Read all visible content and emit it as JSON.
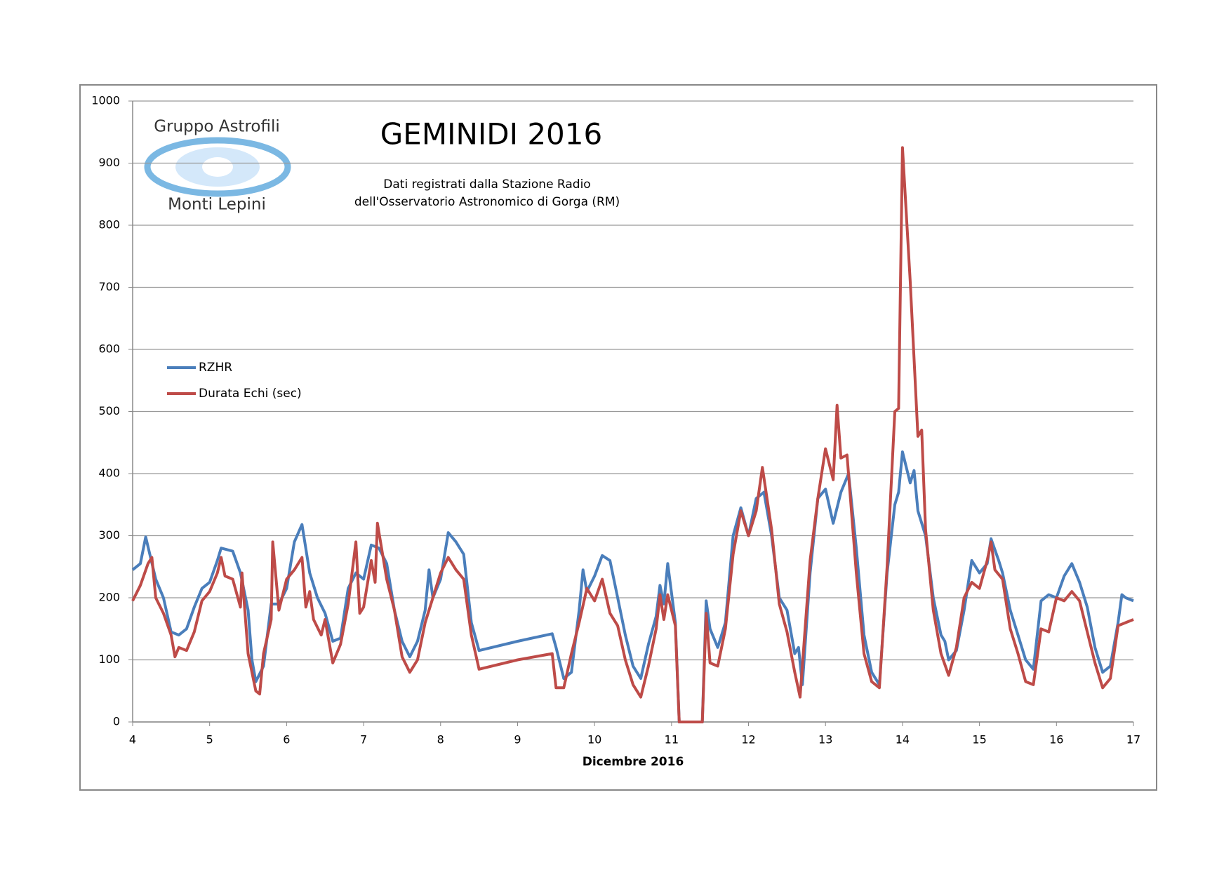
{
  "chart_data": {
    "type": "line",
    "title": "GEMINIDI 2016",
    "subtitle": [
      "Dati registrati dalla Stazione Radio",
      "dell'Osservatorio Astronomico di Gorga (RM)"
    ],
    "logo": [
      "Gruppo Astrofili",
      "Monti Lepini"
    ],
    "x_label": "Dicembre 2016",
    "xlim": [
      4,
      17
    ],
    "xticks": [
      4,
      5,
      6,
      7,
      8,
      9,
      10,
      11,
      12,
      13,
      14,
      15,
      16,
      17
    ],
    "ylim": [
      0,
      1000
    ],
    "yticks": [
      0,
      100,
      200,
      300,
      400,
      500,
      600,
      700,
      800,
      900,
      1000
    ],
    "grid": true,
    "legend": "left",
    "series": [
      {
        "name": "RZHR",
        "color": "#4a7ebb",
        "x": [
          4.0,
          4.1,
          4.17,
          4.3,
          4.4,
          4.5,
          4.6,
          4.7,
          4.8,
          4.9,
          5.0,
          5.1,
          5.15,
          5.3,
          5.4,
          5.5,
          5.55,
          5.6,
          5.7,
          5.8,
          5.9,
          6.0,
          6.1,
          6.2,
          6.3,
          6.4,
          6.5,
          6.6,
          6.7,
          6.8,
          6.9,
          7.0,
          7.1,
          7.2,
          7.3,
          7.4,
          7.5,
          7.6,
          7.7,
          7.8,
          7.85,
          7.9,
          8.0,
          8.1,
          8.2,
          8.3,
          8.4,
          8.5,
          9.0,
          9.45,
          9.5,
          9.6,
          9.7,
          9.8,
          9.85,
          9.9,
          10.0,
          10.1,
          10.2,
          10.3,
          10.4,
          10.5,
          10.6,
          10.7,
          10.8,
          10.85,
          10.9,
          10.95,
          11.05,
          11.1,
          11.4,
          11.45,
          11.5,
          11.6,
          11.7,
          11.8,
          11.9,
          12.0,
          12.1,
          12.2,
          12.3,
          12.4,
          12.5,
          12.6,
          12.65,
          12.7,
          12.8,
          12.9,
          13.0,
          13.1,
          13.2,
          13.3,
          13.4,
          13.5,
          13.6,
          13.7,
          13.8,
          13.9,
          13.95,
          14.0,
          14.1,
          14.15,
          14.2,
          14.3,
          14.4,
          14.5,
          14.55,
          14.6,
          14.7,
          14.8,
          14.9,
          15.0,
          15.1,
          15.15,
          15.25,
          15.3,
          15.4,
          15.5,
          15.6,
          15.7,
          15.8,
          15.9,
          16.0,
          16.1,
          16.2,
          16.3,
          16.4,
          16.5,
          16.6,
          16.7,
          16.8,
          16.85,
          16.9,
          17.0
        ],
        "values": [
          245,
          255,
          298,
          230,
          200,
          145,
          140,
          150,
          185,
          215,
          225,
          260,
          280,
          275,
          240,
          180,
          100,
          65,
          90,
          190,
          190,
          215,
          290,
          318,
          240,
          200,
          175,
          130,
          135,
          215,
          240,
          230,
          285,
          280,
          255,
          180,
          130,
          105,
          130,
          180,
          245,
          200,
          230,
          305,
          290,
          270,
          160,
          115,
          130,
          142,
          120,
          70,
          80,
          180,
          245,
          210,
          235,
          268,
          260,
          200,
          140,
          90,
          70,
          125,
          170,
          220,
          190,
          255,
          160,
          0,
          0,
          195,
          150,
          120,
          160,
          300,
          345,
          300,
          360,
          370,
          300,
          200,
          180,
          110,
          120,
          60,
          240,
          360,
          375,
          320,
          370,
          400,
          280,
          140,
          80,
          60,
          240,
          350,
          370,
          435,
          385,
          405,
          340,
          300,
          200,
          140,
          130,
          100,
          115,
          180,
          260,
          240,
          255,
          295,
          260,
          240,
          180,
          140,
          100,
          85,
          195,
          205,
          200,
          235,
          255,
          225,
          185,
          120,
          80,
          90,
          160,
          205,
          200,
          195
        ]
      },
      {
        "name": "Durata Echi (sec)",
        "color": "#be4b48",
        "x": [
          4.0,
          4.1,
          4.2,
          4.25,
          4.3,
          4.4,
          4.5,
          4.55,
          4.6,
          4.7,
          4.8,
          4.9,
          5.0,
          5.1,
          5.15,
          5.2,
          5.3,
          5.4,
          5.42,
          5.5,
          5.6,
          5.65,
          5.7,
          5.8,
          5.82,
          5.9,
          6.0,
          6.1,
          6.2,
          6.25,
          6.3,
          6.35,
          6.45,
          6.5,
          6.6,
          6.7,
          6.8,
          6.9,
          6.95,
          7.0,
          7.1,
          7.15,
          7.18,
          7.3,
          7.4,
          7.5,
          7.6,
          7.7,
          7.8,
          7.9,
          8.0,
          8.1,
          8.2,
          8.3,
          8.4,
          8.5,
          9.0,
          9.45,
          9.5,
          9.6,
          9.7,
          9.8,
          9.9,
          10.0,
          10.1,
          10.2,
          10.3,
          10.4,
          10.5,
          10.6,
          10.7,
          10.8,
          10.85,
          10.9,
          10.95,
          11.05,
          11.1,
          11.4,
          11.45,
          11.5,
          11.6,
          11.7,
          11.8,
          11.9,
          12.0,
          12.1,
          12.18,
          12.3,
          12.4,
          12.5,
          12.6,
          12.67,
          12.8,
          12.9,
          13.0,
          13.1,
          13.15,
          13.2,
          13.28,
          13.4,
          13.5,
          13.6,
          13.7,
          13.8,
          13.9,
          13.95,
          14.0,
          14.1,
          14.2,
          14.25,
          14.3,
          14.4,
          14.5,
          14.6,
          14.7,
          14.8,
          14.9,
          15.0,
          15.1,
          15.15,
          15.2,
          15.3,
          15.4,
          15.5,
          15.6,
          15.7,
          15.8,
          15.9,
          16.0,
          16.1,
          16.2,
          16.3,
          16.4,
          16.5,
          16.6,
          16.7,
          16.8,
          16.9,
          17.0
        ],
        "values": [
          195,
          220,
          255,
          265,
          200,
          175,
          140,
          105,
          120,
          115,
          145,
          195,
          210,
          240,
          265,
          235,
          230,
          185,
          240,
          110,
          50,
          45,
          110,
          165,
          290,
          180,
          230,
          245,
          265,
          185,
          210,
          165,
          140,
          165,
          95,
          125,
          190,
          290,
          175,
          185,
          260,
          225,
          320,
          230,
          180,
          105,
          80,
          100,
          160,
          200,
          240,
          265,
          245,
          230,
          140,
          85,
          100,
          110,
          55,
          55,
          110,
          160,
          215,
          195,
          230,
          175,
          155,
          100,
          60,
          40,
          90,
          150,
          205,
          165,
          205,
          155,
          0,
          0,
          175,
          95,
          90,
          150,
          270,
          340,
          300,
          340,
          410,
          310,
          190,
          145,
          80,
          40,
          260,
          360,
          440,
          390,
          510,
          425,
          430,
          240,
          110,
          65,
          55,
          250,
          500,
          505,
          925,
          710,
          460,
          470,
          310,
          180,
          110,
          75,
          120,
          200,
          225,
          215,
          260,
          290,
          245,
          230,
          150,
          110,
          65,
          60,
          150,
          145,
          200,
          195,
          210,
          195,
          145,
          95,
          55,
          70,
          155,
          160,
          165
        ]
      }
    ]
  }
}
